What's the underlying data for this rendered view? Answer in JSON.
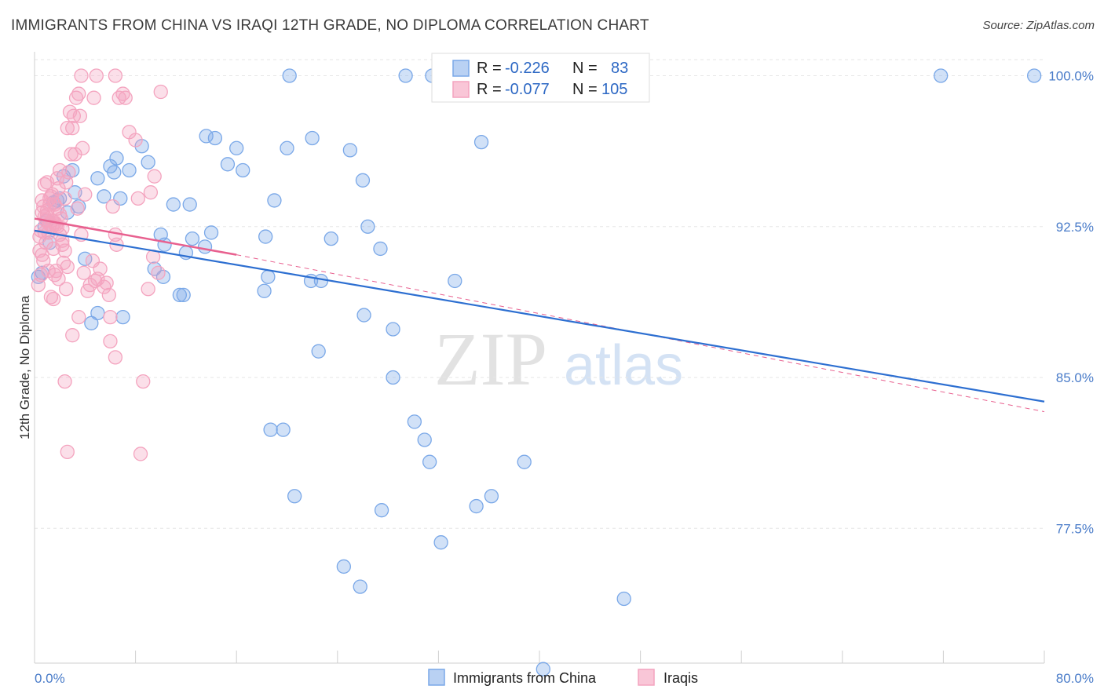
{
  "title": "IMMIGRANTS FROM CHINA VS IRAQI 12TH GRADE, NO DIPLOMA CORRELATION CHART",
  "source": "Source: ZipAtlas.com",
  "watermark": {
    "zip": "ZIP",
    "atlas": "atlas"
  },
  "chart_data": {
    "type": "scatter",
    "title": "IMMIGRANTS FROM CHINA VS IRAQI 12TH GRADE, NO DIPLOMA CORRELATION CHART",
    "xlabel": "",
    "ylabel": "12th Grade, No Diploma",
    "xlim": [
      0,
      80
    ],
    "ylim": [
      70.8,
      100.8
    ],
    "x_tick_labels": [
      "0.0%",
      "80.0%"
    ],
    "y_ticks": [
      77.5,
      85.0,
      92.5,
      100.0
    ],
    "y_tick_labels": [
      "77.5%",
      "85.0%",
      "92.5%",
      "100.0%"
    ],
    "grid": true,
    "legend_position": "top-center",
    "series": [
      {
        "name": "Immigrants from China",
        "color": "#7aa8e8",
        "line_color": "#2d6fd1",
        "stats": {
          "r_label": "R =",
          "r": "-0.226",
          "n_label": "N =",
          "n": "83"
        },
        "trend": {
          "x0": 0,
          "y0": 92.3,
          "x1": 80,
          "y1": 83.8
        },
        "points": [
          [
            0.3,
            90.0
          ],
          [
            0.6,
            90.2
          ],
          [
            0.8,
            92.5
          ],
          [
            1.0,
            92.8
          ],
          [
            1.2,
            91.7
          ],
          [
            1.5,
            93.7
          ],
          [
            1.8,
            93.8
          ],
          [
            2.0,
            93.9
          ],
          [
            2.3,
            95.0
          ],
          [
            2.6,
            93.2
          ],
          [
            3.0,
            95.3
          ],
          [
            3.2,
            94.2
          ],
          [
            3.5,
            93.5
          ],
          [
            4.0,
            90.9
          ],
          [
            5.0,
            94.9
          ],
          [
            5.5,
            94.0
          ],
          [
            6.0,
            95.5
          ],
          [
            6.3,
            95.2
          ],
          [
            6.5,
            95.9
          ],
          [
            6.8,
            93.9
          ],
          [
            4.5,
            87.7
          ],
          [
            5.0,
            88.2
          ],
          [
            7.0,
            88.0
          ],
          [
            7.5,
            95.3
          ],
          [
            8.5,
            96.5
          ],
          [
            9.0,
            95.7
          ],
          [
            10.0,
            92.1
          ],
          [
            10.3,
            91.6
          ],
          [
            11.0,
            93.6
          ],
          [
            11.5,
            89.1
          ],
          [
            11.8,
            89.1
          ],
          [
            12.0,
            91.2
          ],
          [
            9.5,
            90.4
          ],
          [
            10.2,
            90.0
          ],
          [
            12.3,
            93.6
          ],
          [
            12.5,
            91.9
          ],
          [
            13.5,
            91.5
          ],
          [
            14.0,
            92.2
          ],
          [
            13.6,
            97.0
          ],
          [
            14.3,
            96.9
          ],
          [
            15.3,
            95.6
          ],
          [
            16.0,
            96.4
          ],
          [
            16.5,
            95.3
          ],
          [
            18.2,
            89.3
          ],
          [
            18.5,
            90.0
          ],
          [
            18.3,
            92.0
          ],
          [
            19.0,
            93.8
          ],
          [
            20.0,
            96.4
          ],
          [
            22.0,
            96.9
          ],
          [
            21.9,
            89.8
          ],
          [
            22.7,
            89.8
          ],
          [
            23.5,
            91.9
          ],
          [
            25.0,
            96.3
          ],
          [
            26.0,
            94.8
          ],
          [
            26.4,
            92.5
          ],
          [
            27.4,
            91.4
          ],
          [
            28.4,
            87.4
          ],
          [
            28.4,
            85.0
          ],
          [
            26.1,
            88.1
          ],
          [
            22.5,
            86.3
          ],
          [
            30.1,
            82.8
          ],
          [
            30.9,
            81.9
          ],
          [
            31.3,
            80.8
          ],
          [
            32.2,
            76.8
          ],
          [
            33.3,
            89.8
          ],
          [
            35.4,
            96.7
          ],
          [
            35.0,
            78.6
          ],
          [
            36.2,
            79.1
          ],
          [
            38.8,
            80.8
          ],
          [
            18.7,
            82.4
          ],
          [
            19.7,
            82.4
          ],
          [
            20.6,
            79.1
          ],
          [
            27.5,
            78.4
          ],
          [
            24.5,
            75.6
          ],
          [
            25.8,
            74.6
          ],
          [
            46.7,
            74.0
          ],
          [
            40.3,
            70.5
          ],
          [
            20.2,
            100.0
          ],
          [
            29.4,
            100.0
          ],
          [
            31.5,
            100.0
          ],
          [
            35.3,
            100.0
          ],
          [
            71.8,
            100.0
          ],
          [
            79.2,
            100.0
          ]
        ]
      },
      {
        "name": "Iraqis",
        "color": "#f4a4bf",
        "line_color": "#e8608f",
        "stats": {
          "r_label": "R =",
          "r": "-0.077",
          "n_label": "N =",
          "n": "105"
        },
        "trend": {
          "x0": 0,
          "y0": 92.9,
          "x1": 16,
          "y1": 91.1
        },
        "trend_dashed": {
          "x0": 16,
          "y0": 91.1,
          "x1": 80,
          "y1": 83.3
        },
        "points": [
          [
            0.3,
            89.6
          ],
          [
            0.4,
            91.3
          ],
          [
            0.5,
            92.3
          ],
          [
            0.6,
            93.2
          ],
          [
            0.7,
            93.5
          ],
          [
            0.8,
            94.6
          ],
          [
            0.9,
            92.8
          ],
          [
            1.0,
            93.3
          ],
          [
            1.1,
            92.2
          ],
          [
            1.2,
            93.6
          ],
          [
            1.3,
            94.0
          ],
          [
            1.4,
            92.5
          ],
          [
            1.5,
            91.4
          ],
          [
            1.6,
            90.1
          ],
          [
            1.7,
            92.6
          ],
          [
            1.8,
            93.4
          ],
          [
            1.9,
            94.4
          ],
          [
            2.0,
            95.3
          ],
          [
            2.1,
            92.9
          ],
          [
            2.2,
            91.6
          ],
          [
            0.5,
            90.1
          ],
          [
            0.7,
            90.8
          ],
          [
            0.9,
            91.7
          ],
          [
            1.1,
            90.3
          ],
          [
            1.3,
            89.0
          ],
          [
            1.5,
            88.9
          ],
          [
            1.7,
            90.3
          ],
          [
            1.9,
            89.9
          ],
          [
            2.3,
            90.7
          ],
          [
            2.5,
            89.4
          ],
          [
            0.6,
            93.8
          ],
          [
            0.8,
            92.2
          ],
          [
            1.0,
            94.7
          ],
          [
            1.2,
            93.9
          ],
          [
            1.4,
            94.1
          ],
          [
            1.6,
            93.6
          ],
          [
            1.8,
            94.9
          ],
          [
            2.0,
            93.1
          ],
          [
            2.2,
            92.4
          ],
          [
            2.4,
            93.9
          ],
          [
            2.5,
            94.7
          ],
          [
            2.7,
            95.2
          ],
          [
            2.9,
            96.1
          ],
          [
            3.0,
            97.4
          ],
          [
            3.1,
            98.0
          ],
          [
            3.3,
            98.9
          ],
          [
            3.5,
            99.1
          ],
          [
            3.6,
            98.0
          ],
          [
            3.8,
            96.4
          ],
          [
            4.0,
            94.1
          ],
          [
            2.6,
            97.4
          ],
          [
            2.8,
            98.2
          ],
          [
            3.2,
            96.1
          ],
          [
            3.4,
            93.4
          ],
          [
            3.7,
            92.1
          ],
          [
            3.9,
            90.2
          ],
          [
            4.2,
            89.3
          ],
          [
            4.4,
            89.6
          ],
          [
            4.6,
            90.8
          ],
          [
            4.8,
            89.8
          ],
          [
            5.0,
            89.9
          ],
          [
            5.2,
            90.4
          ],
          [
            5.5,
            89.5
          ],
          [
            5.7,
            89.7
          ],
          [
            5.9,
            89.1
          ],
          [
            6.0,
            88.0
          ],
          [
            6.2,
            93.5
          ],
          [
            6.4,
            92.1
          ],
          [
            6.5,
            91.6
          ],
          [
            7.0,
            99.1
          ],
          [
            7.2,
            98.9
          ],
          [
            7.5,
            97.2
          ],
          [
            8.0,
            96.8
          ],
          [
            8.2,
            93.9
          ],
          [
            9.0,
            89.4
          ],
          [
            9.2,
            94.2
          ],
          [
            9.5,
            95.0
          ],
          [
            3.0,
            87.1
          ],
          [
            3.5,
            88.0
          ],
          [
            6.0,
            86.8
          ],
          [
            6.4,
            86.0
          ],
          [
            8.6,
            84.8
          ],
          [
            2.4,
            84.8
          ],
          [
            2.6,
            81.3
          ],
          [
            3.7,
            100.0
          ],
          [
            6.4,
            100.0
          ],
          [
            4.9,
            100.0
          ],
          [
            4.7,
            98.9
          ],
          [
            6.7,
            98.9
          ],
          [
            10.0,
            99.2
          ],
          [
            0.4,
            92.0
          ],
          [
            0.6,
            91.1
          ],
          [
            0.8,
            93.0
          ],
          [
            1.0,
            93.1
          ],
          [
            1.2,
            92.6
          ],
          [
            1.4,
            92.8
          ],
          [
            1.6,
            92.7
          ],
          [
            1.8,
            92.5
          ],
          [
            2.0,
            92.1
          ],
          [
            2.2,
            91.8
          ],
          [
            2.4,
            91.3
          ],
          [
            2.6,
            90.5
          ],
          [
            8.4,
            81.2
          ],
          [
            9.4,
            91.0
          ],
          [
            9.8,
            90.2
          ]
        ]
      }
    ]
  },
  "legend": {
    "items": [
      {
        "label": "Immigrants from China"
      },
      {
        "label": "Iraqis"
      }
    ]
  }
}
